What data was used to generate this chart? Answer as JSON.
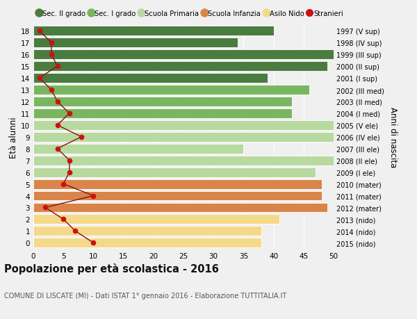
{
  "ages": [
    18,
    17,
    16,
    15,
    14,
    13,
    12,
    11,
    10,
    9,
    8,
    7,
    6,
    5,
    4,
    3,
    2,
    1,
    0
  ],
  "years": [
    "1997 (V sup)",
    "1998 (IV sup)",
    "1999 (III sup)",
    "2000 (II sup)",
    "2001 (I sup)",
    "2002 (III med)",
    "2003 (II med)",
    "2004 (I med)",
    "2005 (V ele)",
    "2006 (IV ele)",
    "2007 (III ele)",
    "2008 (II ele)",
    "2009 (I ele)",
    "2010 (mater)",
    "2011 (mater)",
    "2012 (mater)",
    "2013 (nido)",
    "2014 (nido)",
    "2015 (nido)"
  ],
  "bar_values": [
    40,
    34,
    51,
    49,
    39,
    46,
    43,
    43,
    51,
    50,
    35,
    50,
    47,
    48,
    48,
    49,
    41,
    38,
    38
  ],
  "stranieri_values": [
    1,
    3,
    3,
    4,
    1,
    3,
    4,
    6,
    4,
    8,
    4,
    6,
    6,
    5,
    10,
    2,
    5,
    7,
    10
  ],
  "bar_colors": [
    "#4a7c40",
    "#4a7c40",
    "#4a7c40",
    "#4a7c40",
    "#4a7c40",
    "#7ab560",
    "#7ab560",
    "#7ab560",
    "#b8d9a0",
    "#b8d9a0",
    "#b8d9a0",
    "#b8d9a0",
    "#b8d9a0",
    "#d9844a",
    "#d9844a",
    "#d9844a",
    "#f5d98a",
    "#f5d98a",
    "#f5d98a"
  ],
  "legend_labels": [
    "Sec. II grado",
    "Sec. I grado",
    "Scuola Primaria",
    "Scuola Infanzia",
    "Asilo Nido",
    "Stranieri"
  ],
  "legend_colors_list": [
    "#4a7c40",
    "#7ab560",
    "#b8d9a0",
    "#d9844a",
    "#f5d98a",
    "#cc1111"
  ],
  "title": "Popolazione per età scolastica - 2016",
  "subtitle": "COMUNE DI LISCATE (MI) - Dati ISTAT 1° gennaio 2016 - Elaborazione TUTTITALIA.IT",
  "ylabel_left": "Età alunni",
  "ylabel_right": "Anni di nascita",
  "xlim": [
    0,
    50
  ],
  "xticks": [
    0,
    5,
    10,
    15,
    20,
    25,
    30,
    35,
    40,
    45,
    50
  ],
  "bg_color": "#f0f0f0",
  "bar_height": 0.82,
  "stranieri_line_color": "#8b1010",
  "stranieri_marker_color": "#cc1111"
}
